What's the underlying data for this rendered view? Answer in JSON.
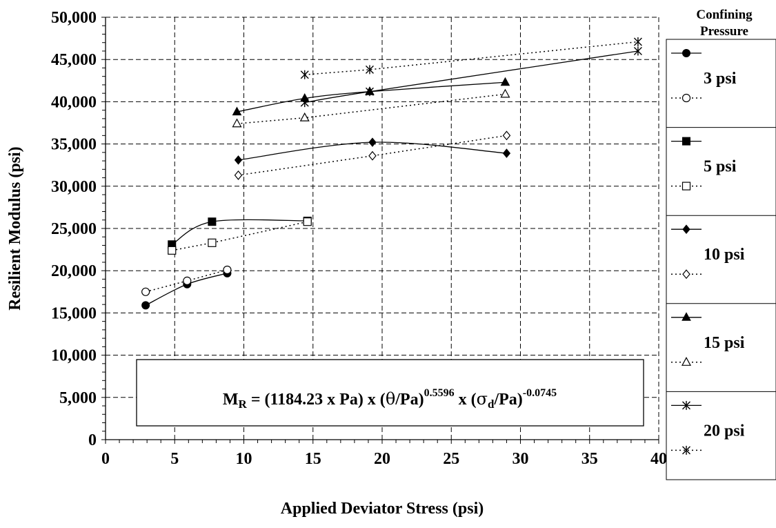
{
  "chart_data": {
    "type": "line",
    "xlabel": "Applied Deviator Stress (psi)",
    "ylabel": "Resilient Modulus (psi)",
    "xlim": [
      0,
      40
    ],
    "ylim": [
      0,
      50000
    ],
    "x_ticks": [
      0,
      5,
      10,
      15,
      20,
      25,
      30,
      35,
      40
    ],
    "x_tick_labels": [
      "0",
      "5",
      "10",
      "15",
      "20",
      "25",
      "30",
      "35",
      "40"
    ],
    "y_ticks": [
      0,
      5000,
      10000,
      15000,
      20000,
      25000,
      30000,
      35000,
      40000,
      45000,
      50000
    ],
    "y_tick_labels": [
      "0",
      "5,000",
      "10,000",
      "15,000",
      "20,000",
      "25,000",
      "30,000",
      "35,000",
      "40,000",
      "45,000",
      "50,000"
    ],
    "grid": true,
    "legend_position": "right",
    "legend_title": "Confining Pressure",
    "legend_groups": [
      {
        "label": "3 psi",
        "measured": "circle-filled",
        "predicted": "circle-open"
      },
      {
        "label": "5 psi",
        "measured": "square-filled",
        "predicted": "square-open"
      },
      {
        "label": "10 psi",
        "measured": "diamond-filled",
        "predicted": "diamond-open"
      },
      {
        "label": "15 psi",
        "measured": "triangle-filled",
        "predicted": "triangle-open"
      },
      {
        "label": "20 psi",
        "measured": "star",
        "predicted": "star"
      }
    ],
    "equation": {
      "m": "M",
      "m_sub": "R",
      "part1": " = (1184.23 x Pa) x (",
      "theta": "θ",
      "part2": "/Pa)",
      "exp1": "0.5596",
      "part3": " x (",
      "sigma": "σ",
      "sigma_sub": "d",
      "part4": "/Pa)",
      "exp2": "-0.0745"
    },
    "series": [
      {
        "group": "3 psi",
        "line": "solid",
        "marker": "circle-filled",
        "smooth": true,
        "x": [
          2.9,
          5.9,
          8.8
        ],
        "y": [
          15900,
          18400,
          19700
        ]
      },
      {
        "group": "3 psi",
        "line": "dotted",
        "marker": "circle-open",
        "smooth": false,
        "x": [
          2.9,
          5.9,
          8.8
        ],
        "y": [
          17500,
          18800,
          20100
        ]
      },
      {
        "group": "5 psi",
        "line": "solid",
        "marker": "square-filled",
        "smooth": true,
        "x": [
          4.8,
          7.7,
          14.6
        ],
        "y": [
          23100,
          25800,
          25900
        ]
      },
      {
        "group": "5 psi",
        "line": "dotted",
        "marker": "square-open",
        "smooth": false,
        "x": [
          4.8,
          7.7,
          14.6
        ],
        "y": [
          22400,
          23300,
          25800
        ]
      },
      {
        "group": "10 psi",
        "line": "solid",
        "marker": "diamond-filled",
        "smooth": true,
        "x": [
          9.6,
          19.3,
          29.0
        ],
        "y": [
          33100,
          35200,
          33900
        ]
      },
      {
        "group": "10 psi",
        "line": "dotted",
        "marker": "diamond-open",
        "smooth": false,
        "x": [
          9.6,
          19.3,
          29.0
        ],
        "y": [
          31300,
          33600,
          36000
        ]
      },
      {
        "group": "15 psi",
        "line": "solid",
        "marker": "triangle-filled",
        "smooth": true,
        "x": [
          9.5,
          14.4,
          19.1,
          28.9
        ],
        "y": [
          38800,
          40400,
          41200,
          42300
        ]
      },
      {
        "group": "15 psi",
        "line": "dotted",
        "marker": "triangle-open",
        "smooth": false,
        "x": [
          9.5,
          14.4,
          28.9
        ],
        "y": [
          37400,
          38100,
          40900
        ]
      },
      {
        "group": "20 psi",
        "line": "solid",
        "marker": "star",
        "smooth": true,
        "x": [
          14.4,
          19.1,
          38.5
        ],
        "y": [
          39900,
          41200,
          46000
        ]
      },
      {
        "group": "20 psi",
        "line": "dotted",
        "marker": "star",
        "smooth": false,
        "x": [
          14.4,
          19.1,
          38.5
        ],
        "y": [
          43200,
          43800,
          47100
        ]
      }
    ]
  }
}
